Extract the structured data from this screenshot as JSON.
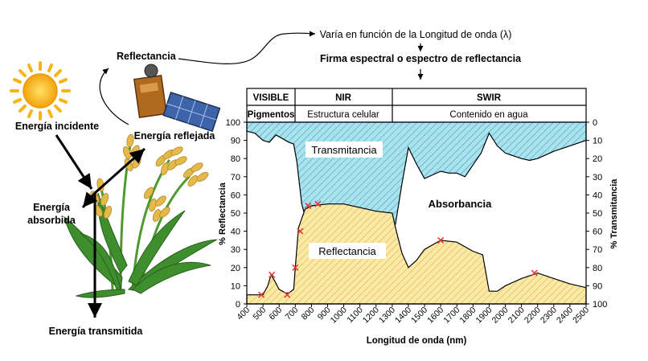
{
  "header": {
    "line1": "Varía en función de la Longitud de onda (λ)",
    "line2": "Firma espectral o espectro de reflectancia"
  },
  "left": {
    "reflectancia": "Reflectancia",
    "incidente": "Energía incidente",
    "reflejada": "Energía reflejada",
    "absorbida_1": "Energía",
    "absorbida_2": "absorbida",
    "transmitida": "Energía transmitida",
    "icons": [
      "sun-icon",
      "satellite-icon",
      "wheat-plant-icon"
    ]
  },
  "bands": {
    "visible": "VISIBLE",
    "nir": "NIR",
    "swir": "SWIR",
    "visible_sub": "Pigmentos",
    "nir_sub": "Estructura celular",
    "swir_sub": "Contenido en agua"
  },
  "regions": {
    "transmitancia": "Transmitancia",
    "absorbancia": "Absorbancia",
    "reflectancia": "Reflectancia"
  },
  "colors": {
    "transmitancia_fill": "#a8e3ef",
    "reflectancia_fill": "#fbe9a6",
    "marker": "#e33b3b",
    "sun": "#f7b515",
    "leaf": "#3e8e2e",
    "grain": "#e3b94a"
  },
  "chart_data": {
    "type": "area",
    "xlabel": "Longitud de onda (nm)",
    "ylabel": "% Reflectancia",
    "y2label": "% Transmitancia",
    "xlim": [
      400,
      2500
    ],
    "ylim": [
      0,
      100
    ],
    "y2lim": [
      100,
      0
    ],
    "xticks": [
      400,
      500,
      600,
      700,
      800,
      900,
      1000,
      1100,
      1200,
      1300,
      1400,
      1500,
      1600,
      1700,
      1800,
      1900,
      2000,
      2100,
      2200,
      2300,
      2400,
      2500
    ],
    "yticks": [
      0,
      10,
      20,
      30,
      40,
      50,
      60,
      70,
      80,
      90,
      100
    ],
    "y2ticks": [
      100,
      90,
      80,
      70,
      60,
      50,
      40,
      30,
      20,
      10,
      0
    ],
    "series": [
      {
        "name": "Reflectancia",
        "x": [
          400,
          450,
          500,
          530,
          550,
          570,
          600,
          640,
          660,
          690,
          700,
          720,
          760,
          800,
          900,
          1000,
          1100,
          1200,
          1300,
          1320,
          1360,
          1400,
          1450,
          1500,
          1600,
          1700,
          1800,
          1860,
          1900,
          1950,
          2000,
          2100,
          2200,
          2300,
          2400,
          2500
        ],
        "y": [
          5,
          5,
          5,
          10,
          16,
          13,
          8,
          6,
          6,
          8,
          20,
          42,
          52,
          54,
          55,
          55,
          53,
          51,
          50,
          42,
          28,
          20,
          24,
          30,
          35,
          34,
          29,
          27,
          7,
          7,
          10,
          14,
          17,
          14,
          11,
          9
        ]
      },
      {
        "name": "Transmitancia",
        "x": [
          400,
          450,
          500,
          540,
          580,
          620,
          660,
          690,
          710,
          740,
          780,
          820,
          900,
          950,
          1000,
          1050,
          1100,
          1200,
          1300,
          1320,
          1360,
          1400,
          1450,
          1500,
          1550,
          1600,
          1650,
          1700,
          1750,
          1850,
          1900,
          1950,
          2000,
          2100,
          2150,
          2200,
          2300,
          2400,
          2500
        ],
        "y": [
          95,
          94,
          90,
          89,
          93,
          91,
          89,
          88,
          78,
          55,
          42,
          40,
          40,
          42,
          40,
          41,
          40,
          41,
          40,
          44,
          66,
          86,
          77,
          69,
          71,
          73,
          72,
          72,
          70,
          83,
          94,
          87,
          83,
          80,
          79,
          80,
          84,
          87,
          90
        ]
      }
    ],
    "markers": {
      "x": [
        490,
        555,
        650,
        700,
        730,
        780,
        840,
        1600,
        2180
      ],
      "y": [
        5,
        16,
        5,
        20,
        40,
        54,
        55,
        35,
        17
      ]
    }
  }
}
